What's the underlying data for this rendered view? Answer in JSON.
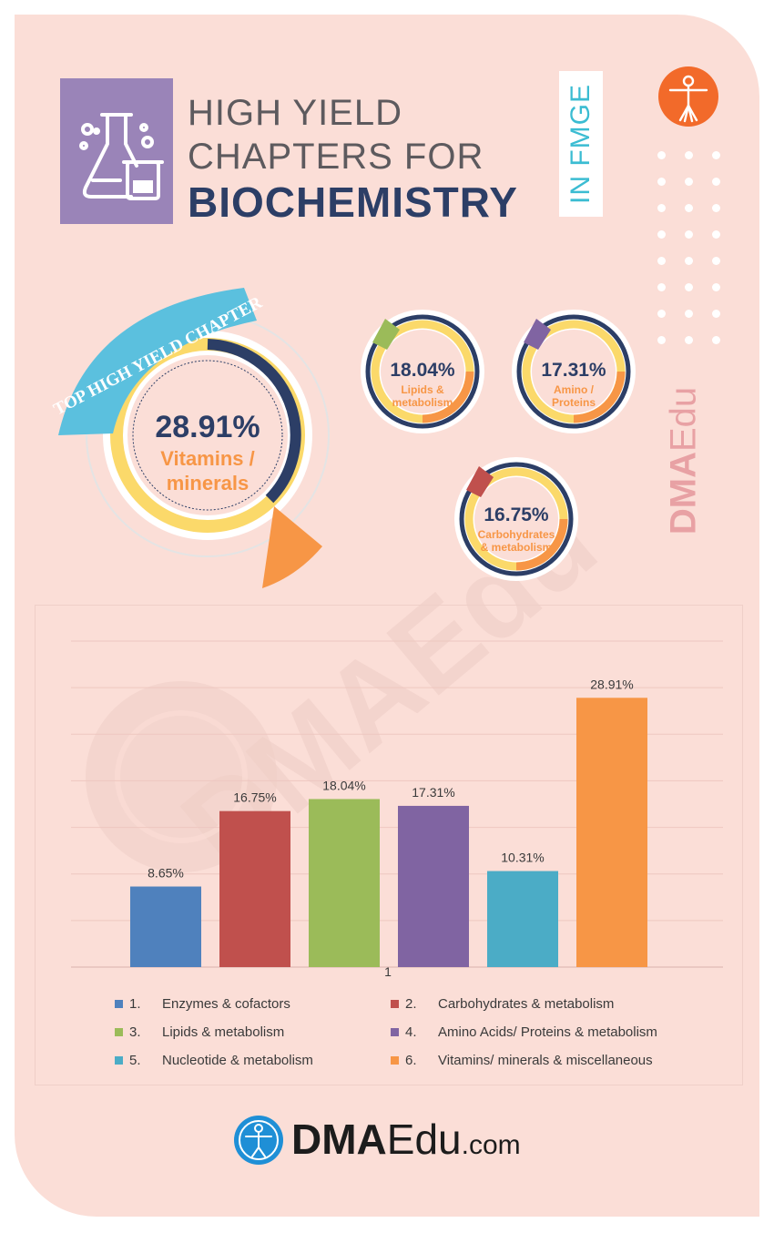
{
  "header": {
    "title_line1": "HIGH YIELD",
    "title_line2": "CHAPTERS FOR",
    "title_bold": "BIOCHEMISTRY",
    "side_tag": "IN FMGE"
  },
  "badges": {
    "top_banner": "TOP HIGH YIELD CHAPTER",
    "main": {
      "value": "28.91%",
      "label_line1": "Vitamins /",
      "label_line2": "minerals"
    },
    "small": [
      {
        "value": "18.04%",
        "label_line1": "Lipids &",
        "label_line2": "metabolism",
        "color": "#9bbb59"
      },
      {
        "value": "17.31%",
        "label_line1": "Amino /",
        "label_line2": "Proteins",
        "color": "#8064a2"
      },
      {
        "value": "16.75%",
        "label_line1": "Carbohydrates",
        "label_line2": "& metabolism",
        "color": "#c0504d"
      }
    ]
  },
  "side_brand": {
    "bold": "DMA",
    "light": "Edu"
  },
  "watermark": "DMAEdu",
  "chart_data": {
    "type": "bar",
    "categories": [
      "1"
    ],
    "xlabel": "1",
    "ylim": [
      0,
      35
    ],
    "grid": true,
    "legend_position": "bottom",
    "series": [
      {
        "name": "Enzymes & cofactors",
        "num": "1.",
        "values": [
          8.65
        ],
        "label": "8.65%",
        "color": "#4f81bd"
      },
      {
        "name": "Carbohydrates  & metabolism",
        "num": "2.",
        "values": [
          16.75
        ],
        "label": "16.75%",
        "color": "#c0504d"
      },
      {
        "name": "Lipids & metabolism",
        "num": "3.",
        "values": [
          18.04
        ],
        "label": "18.04%",
        "color": "#9bbb59"
      },
      {
        "name": "Amino Acids/ Proteins & metabolism",
        "num": "4.",
        "values": [
          17.31
        ],
        "label": "17.31%",
        "color": "#8064a2"
      },
      {
        "name": "Nucleotide & metabolism",
        "num": "5.",
        "values": [
          10.31
        ],
        "label": "10.31%",
        "color": "#4bacc6"
      },
      {
        "name": "Vitamins/ minerals & miscellaneous",
        "num": "6.",
        "values": [
          28.91
        ],
        "label": "28.91%",
        "color": "#f79646"
      }
    ]
  },
  "footer": {
    "brand_bold": "DMA",
    "brand_mid": "Edu",
    "brand_tail": ".com"
  },
  "colors": {
    "background": "#fbded7",
    "navy": "#2c3e66",
    "orange": "#f79646",
    "cyan": "#5bc0de",
    "yellow": "#fbd96a"
  }
}
